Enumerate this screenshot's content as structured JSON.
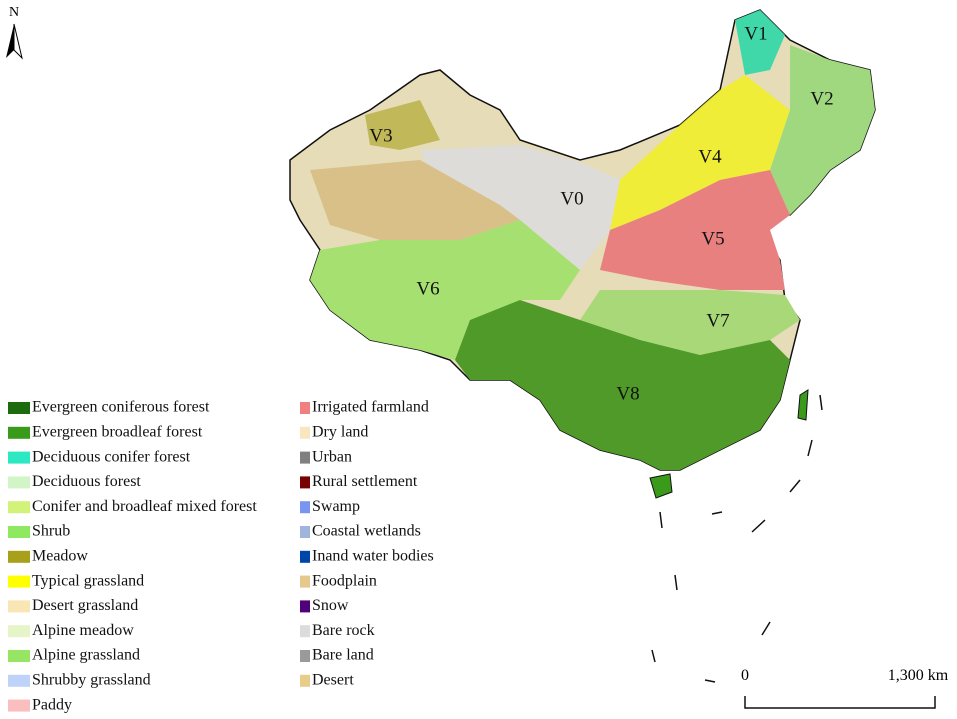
{
  "north": "N",
  "regions": [
    "V0",
    "V1",
    "V2",
    "V3",
    "V4",
    "V5",
    "V6",
    "V7",
    "V8"
  ],
  "legend": [
    {
      "name": "Evergreen coniferous forest",
      "color": "#1e6b0f"
    },
    {
      "name": "Evergreen broadleaf forest",
      "color": "#3a9a1a"
    },
    {
      "name": "Deciduous conifer forest",
      "color": "#2de8c0"
    },
    {
      "name": "Deciduous forest",
      "color": "#d2f5c8"
    },
    {
      "name": "Conifer and broadleaf mixed forest",
      "color": "#d2f27a"
    },
    {
      "name": "Shrub",
      "color": "#8ee860"
    },
    {
      "name": "Meadow",
      "color": "#a8a01a"
    },
    {
      "name": "Typical grassland",
      "color": "#ffff00"
    },
    {
      "name": "Desert grassland",
      "color": "#fae6b4"
    },
    {
      "name": "Alpine meadow",
      "color": "#e6f5c8"
    },
    {
      "name": "Alpine grassland",
      "color": "#96e664"
    },
    {
      "name": "Shrubby grassland",
      "color": "#bed2fa"
    },
    {
      "name": "Paddy",
      "color": "#fabebe"
    },
    {
      "name": "Irrigated farmland",
      "color": "#f08080"
    },
    {
      "name": "Dry land",
      "color": "#fae6be"
    },
    {
      "name": "Urban",
      "color": "#808080"
    },
    {
      "name": "Rural settlement",
      "color": "#780000"
    },
    {
      "name": "Swamp",
      "color": "#7896f0"
    },
    {
      "name": "Coastal wetlands",
      "color": "#a0b4dc"
    },
    {
      "name": "Inand water bodies",
      "color": "#0046aa"
    },
    {
      "name": "Foodplain",
      "color": "#e6c88c"
    },
    {
      "name": "Snow",
      "color": "#500078"
    },
    {
      "name": "Bare rock",
      "color": "#dcdcdc"
    },
    {
      "name": "Bare land",
      "color": "#9a9a9a"
    },
    {
      "name": "Desert",
      "color": "#e8cc8a"
    }
  ],
  "scale_bar": {
    "start": "0",
    "end": "1,300 km"
  }
}
